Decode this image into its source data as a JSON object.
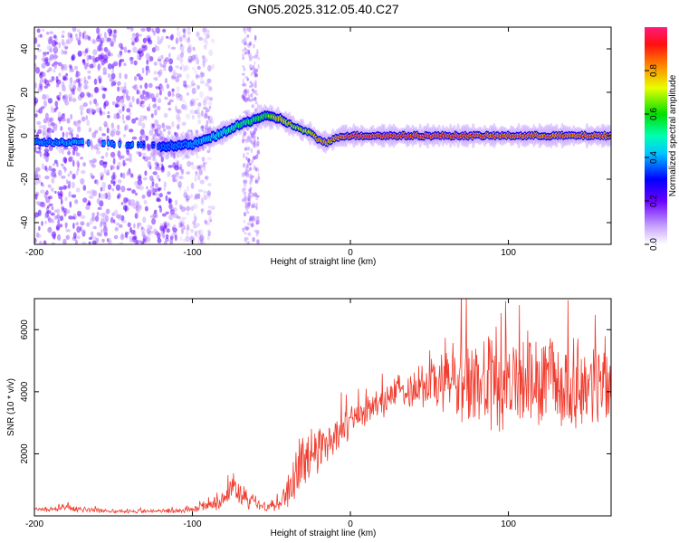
{
  "title": "GN05.2025.312.05.40.C27",
  "chart_data": [
    {
      "type": "heatmap",
      "name": "spectrogram",
      "xlabel": "Height of straight line (km)",
      "ylabel": "Frequency (Hz)",
      "xlim": [
        -200,
        165
      ],
      "ylim": [
        -50,
        50
      ],
      "xticks": [
        -200,
        -100,
        0,
        100
      ],
      "yticks": [
        -40,
        -20,
        0,
        20,
        40
      ],
      "colorbar": {
        "label": "Normalized spectral amplitude",
        "range": [
          0,
          1
        ],
        "ticks": [
          "0.0",
          "0.2",
          "0.4",
          "0.6",
          "0.8"
        ]
      },
      "ridge": {
        "description_points_x": [
          -200,
          -175,
          -120,
          -100,
          -85,
          -70,
          -55,
          -45,
          -35,
          -25,
          -20,
          -15,
          -5,
          0,
          20,
          60,
          100,
          165
        ],
        "frequency_hz": [
          -3,
          -3,
          -5,
          -4,
          0,
          5,
          9,
          8,
          4,
          1,
          -2,
          -3,
          0,
          0,
          0,
          0,
          0,
          0
        ],
        "peak_amplitude": [
          0.35,
          0.4,
          0.3,
          0.35,
          0.45,
          0.55,
          0.6,
          0.8,
          0.7,
          0.75,
          0.85,
          0.8,
          0.9,
          0.95,
          0.95,
          0.95,
          0.9,
          0.9
        ]
      },
      "noise_band": {
        "x_start": -200,
        "x_end": -95,
        "secondary_x": [
          -68,
          -58
        ]
      }
    },
    {
      "type": "line",
      "name": "snr",
      "xlabel": "Height of straight line (km)",
      "ylabel": "SNR (10 * v/v)",
      "xlim": [
        -200,
        165
      ],
      "ylim": [
        0,
        7000
      ],
      "xticks": [
        -200,
        -100,
        0,
        100
      ],
      "yticks": [
        2000,
        4000,
        6000
      ],
      "color": "#f03c2e",
      "envelope": {
        "x": [
          -200,
          -180,
          -150,
          -120,
          -100,
          -85,
          -75,
          -65,
          -55,
          -45,
          -38,
          -30,
          -20,
          -10,
          0,
          10,
          20,
          30,
          40,
          50,
          60,
          70,
          80,
          90,
          100,
          110,
          120,
          130,
          140,
          150,
          160,
          165
        ],
        "mean": [
          200,
          250,
          150,
          150,
          200,
          400,
          900,
          500,
          300,
          400,
          1000,
          1700,
          2200,
          2600,
          3000,
          3400,
          3700,
          4000,
          4200,
          4300,
          4400,
          4300,
          4300,
          4200,
          4200,
          4300,
          4200,
          4300,
          4200,
          4200,
          4300,
          4200
        ],
        "spread": [
          80,
          100,
          60,
          60,
          100,
          200,
          500,
          300,
          200,
          300,
          700,
          900,
          700,
          600,
          500,
          500,
          500,
          500,
          700,
          900,
          1200,
          1400,
          1500,
          1500,
          1500,
          1500,
          1400,
          1400,
          1400,
          1300,
          1300,
          1300
        ]
      }
    }
  ]
}
